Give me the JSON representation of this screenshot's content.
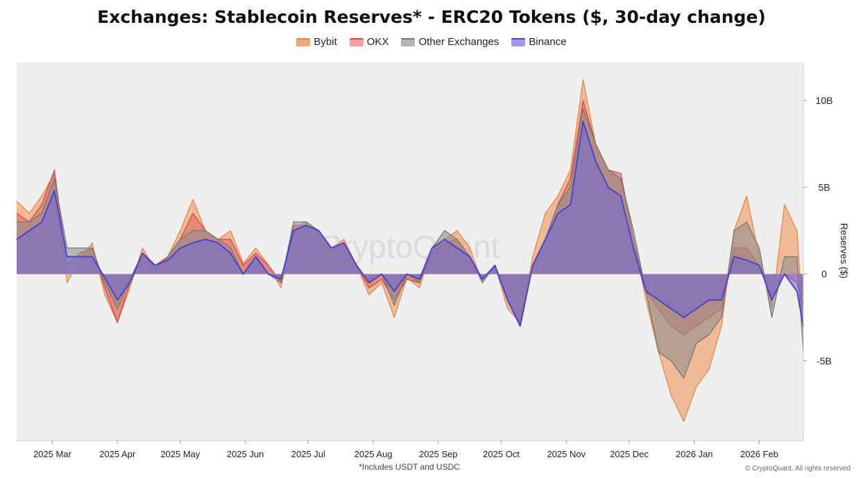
{
  "chart_data": {
    "type": "area",
    "title": "Exchanges: Stablecoin Reserves* - ERC20 Tokens ($, 30-day change)",
    "ylabel": "Reserves ($)",
    "ylim": [
      -9600000000,
      12200000000
    ],
    "yticks": [
      {
        "value": 10000000000,
        "label": "10B"
      },
      {
        "value": 5000000000,
        "label": "5B"
      },
      {
        "value": 0,
        "label": "0"
      },
      {
        "value": -5000000000,
        "label": "-5B"
      }
    ],
    "xlim": [
      "2025-02-12",
      "2026-02-22"
    ],
    "xticks": [
      {
        "date": "2025-03-01",
        "label": "2025 Mar"
      },
      {
        "date": "2025-04-01",
        "label": "2025 Apr"
      },
      {
        "date": "2025-05-01",
        "label": "2025 May"
      },
      {
        "date": "2025-06-01",
        "label": "2025 Jun"
      },
      {
        "date": "2025-07-01",
        "label": "2025 Jul"
      },
      {
        "date": "2025-08-01",
        "label": "2025 Aug"
      },
      {
        "date": "2025-09-01",
        "label": "2025 Sep"
      },
      {
        "date": "2025-10-01",
        "label": "2025 Oct"
      },
      {
        "date": "2025-11-01",
        "label": "2025 Nov"
      },
      {
        "date": "2025-12-01",
        "label": "2025 Dec"
      },
      {
        "date": "2026-01-01",
        "label": "2026 Jan"
      },
      {
        "date": "2026-02-01",
        "label": "2026 Feb"
      }
    ],
    "grid": false,
    "legend_position": "top-center",
    "x": [
      "2025-02-12",
      "2025-02-18",
      "2025-02-24",
      "2025-03-02",
      "2025-03-08",
      "2025-03-14",
      "2025-03-20",
      "2025-03-26",
      "2025-04-01",
      "2025-04-07",
      "2025-04-13",
      "2025-04-19",
      "2025-04-25",
      "2025-05-01",
      "2025-05-07",
      "2025-05-13",
      "2025-05-19",
      "2025-05-25",
      "2025-05-31",
      "2025-06-06",
      "2025-06-12",
      "2025-06-18",
      "2025-06-24",
      "2025-06-30",
      "2025-07-06",
      "2025-07-12",
      "2025-07-18",
      "2025-07-24",
      "2025-07-30",
      "2025-08-05",
      "2025-08-11",
      "2025-08-17",
      "2025-08-23",
      "2025-08-29",
      "2025-09-04",
      "2025-09-10",
      "2025-09-16",
      "2025-09-22",
      "2025-09-28",
      "2025-10-04",
      "2025-10-10",
      "2025-10-16",
      "2025-10-22",
      "2025-10-28",
      "2025-11-03",
      "2025-11-09",
      "2025-11-15",
      "2025-11-21",
      "2025-11-27",
      "2025-12-03",
      "2025-12-09",
      "2025-12-15",
      "2025-12-21",
      "2025-12-27",
      "2026-01-02",
      "2026-01-08",
      "2026-01-14",
      "2026-01-20",
      "2026-01-26",
      "2026-02-01",
      "2026-02-07",
      "2026-02-13",
      "2026-02-19",
      "2026-02-22"
    ],
    "series": [
      {
        "name": "Bybit",
        "color": "#f0a878",
        "values": [
          4.2,
          3.5,
          4.5,
          5.8,
          -0.5,
          0.8,
          1.8,
          -1.2,
          -2.8,
          -0.8,
          1.5,
          0.3,
          1.0,
          2.5,
          4.3,
          2.5,
          2.0,
          2.5,
          0.6,
          1.5,
          0.5,
          -0.8,
          2.5,
          3.0,
          2.5,
          1.5,
          2.0,
          0.5,
          -1.2,
          -0.5,
          -2.5,
          -0.2,
          -0.8,
          1.5,
          2.0,
          2.5,
          1.5,
          -0.5,
          0.5,
          -2.0,
          -2.8,
          1.0,
          3.5,
          4.5,
          6.0,
          11.2,
          7.5,
          6.0,
          5.5,
          2.0,
          -1.5,
          -4.5,
          -7.0,
          -8.5,
          -6.5,
          -5.5,
          -3.0,
          2.5,
          4.5,
          1.0,
          -2.0,
          4.0,
          2.5,
          -3.0
        ]
      },
      {
        "name": "OKX",
        "color": "#e06060",
        "values": [
          3.5,
          3.0,
          4.0,
          6.0,
          0.5,
          1.2,
          1.5,
          -0.8,
          -2.8,
          -0.5,
          1.2,
          0.5,
          1.0,
          2.0,
          3.5,
          2.5,
          2.0,
          2.0,
          0.5,
          1.2,
          0.5,
          -0.5,
          2.8,
          2.8,
          2.5,
          1.5,
          1.8,
          0.5,
          -0.8,
          -0.3,
          -1.5,
          -0.3,
          -0.5,
          1.2,
          1.8,
          2.0,
          1.0,
          -0.3,
          0.5,
          -1.5,
          -2.8,
          0.5,
          2.0,
          4.0,
          5.5,
          10.0,
          7.5,
          6.0,
          5.8,
          2.0,
          -1.0,
          -2.0,
          -3.0,
          -3.5,
          -3.0,
          -2.5,
          -2.0,
          1.5,
          1.5,
          0.5,
          -1.5,
          0.0,
          -0.5,
          -2.0
        ]
      },
      {
        "name": "Other Exchanges",
        "color": "#909090",
        "values": [
          3.0,
          3.0,
          3.5,
          5.5,
          1.5,
          1.5,
          1.5,
          -0.5,
          -2.0,
          -0.3,
          1.2,
          0.3,
          1.0,
          2.0,
          2.5,
          2.5,
          2.0,
          1.5,
          0.0,
          1.0,
          0.0,
          -0.5,
          3.0,
          3.0,
          2.5,
          1.5,
          1.8,
          0.5,
          -0.5,
          0.0,
          -1.8,
          0.0,
          -0.5,
          1.5,
          2.5,
          2.0,
          1.0,
          -0.5,
          0.5,
          -1.5,
          -3.0,
          0.5,
          2.0,
          4.0,
          5.0,
          9.5,
          7.5,
          6.0,
          5.5,
          2.5,
          -1.0,
          -4.5,
          -5.0,
          -6.0,
          -4.0,
          -3.5,
          -2.5,
          2.5,
          3.0,
          1.5,
          -2.5,
          1.0,
          1.0,
          -4.5
        ]
      },
      {
        "name": "Binance",
        "color": "#6f66d8",
        "values": [
          2.0,
          2.5,
          3.0,
          4.8,
          1.0,
          1.0,
          1.0,
          -0.2,
          -1.5,
          -0.5,
          1.2,
          0.5,
          0.8,
          1.5,
          1.8,
          2.0,
          1.8,
          1.2,
          0.0,
          1.0,
          0.0,
          -0.3,
          2.5,
          2.8,
          2.5,
          1.5,
          1.8,
          0.5,
          -0.5,
          0.0,
          -1.0,
          0.0,
          -0.3,
          1.5,
          2.0,
          1.5,
          1.0,
          -0.3,
          0.5,
          -1.5,
          -3.0,
          0.5,
          2.0,
          3.5,
          4.0,
          8.8,
          6.5,
          5.0,
          4.5,
          1.5,
          -1.0,
          -1.5,
          -2.0,
          -2.5,
          -2.0,
          -1.5,
          -1.5,
          1.0,
          0.8,
          0.5,
          -1.5,
          0.0,
          -1.0,
          -3.0
        ]
      }
    ]
  },
  "footnote": "*Includes USDT and USDC",
  "copyright": "© CryptoQuant. All rights reserved",
  "watermark": "CryptoQuant"
}
